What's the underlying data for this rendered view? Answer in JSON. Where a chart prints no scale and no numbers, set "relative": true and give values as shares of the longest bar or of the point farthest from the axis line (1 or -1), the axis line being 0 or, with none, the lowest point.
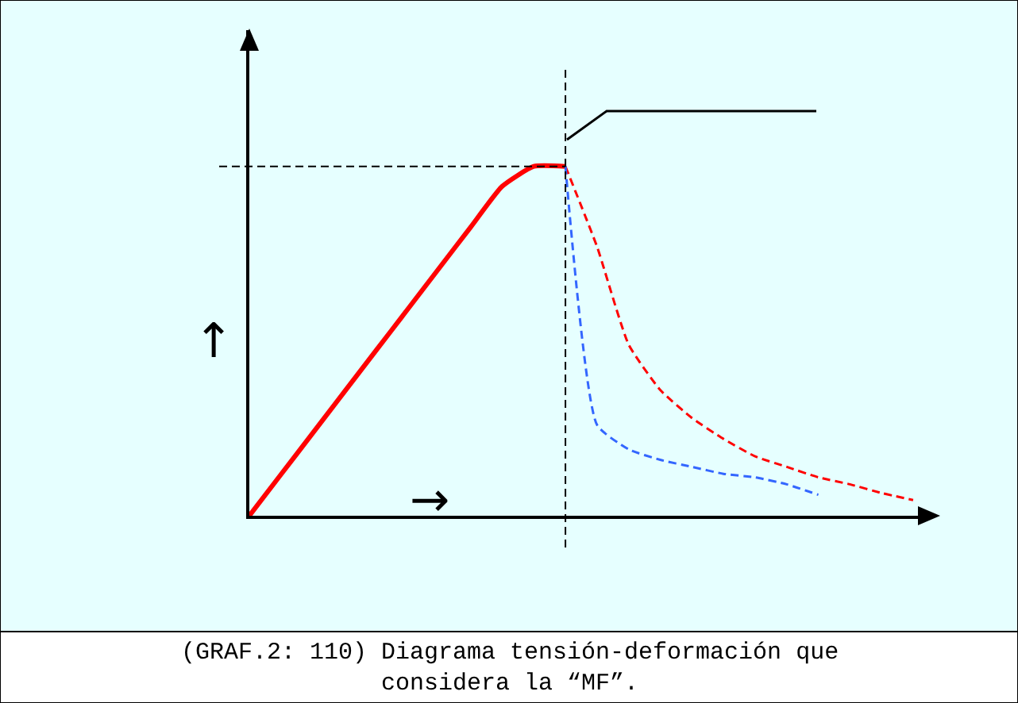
{
  "chart_data": {
    "type": "line",
    "relative": true,
    "grid": false,
    "marker": "none",
    "xlabel": "→",
    "ylabel": "↑",
    "categories": [
      null,
      null,
      null,
      null,
      null,
      null,
      null,
      null,
      null,
      null,
      null,
      null,
      null,
      null,
      null,
      null,
      null,
      null,
      null,
      null,
      null,
      null
    ],
    "series": [
      {
        "color": "#ff0000",
        "line_style": "solid",
        "values": [
          0,
          0.118,
          0.236,
          0.354,
          0.472,
          0.59,
          0.708,
          0.826,
          0.943,
          1.0,
          1.0,
          null,
          null,
          null,
          null,
          null,
          null,
          null,
          null,
          null,
          null,
          null
        ]
      },
      {
        "color": "#ff0000",
        "line_style": "dashed",
        "values": [
          null,
          null,
          null,
          null,
          null,
          null,
          null,
          null,
          null,
          null,
          1.0,
          0.77,
          0.49,
          0.36,
          0.28,
          0.22,
          0.17,
          0.14,
          0.11,
          0.09,
          0.065,
          0.045
        ]
      },
      {
        "color": "#3366ff",
        "line_style": "dashed",
        "values": [
          null,
          null,
          null,
          null,
          null,
          null,
          null,
          null,
          null,
          null,
          1.0,
          0.26,
          0.19,
          0.16,
          0.14,
          0.12,
          0.11,
          0.09,
          0.06,
          null,
          null,
          null
        ]
      }
    ],
    "ref_lines": [
      {
        "axis": "y",
        "value": 1.0,
        "color": "#000000",
        "line_style": "dashed"
      },
      {
        "axis": "x",
        "color": "#000000",
        "line_style": "dashed"
      }
    ],
    "annotations": [
      "(GRAF.2: 110) Diagrama tensión-deformación que\nconsidera la “MF”."
    ]
  }
}
